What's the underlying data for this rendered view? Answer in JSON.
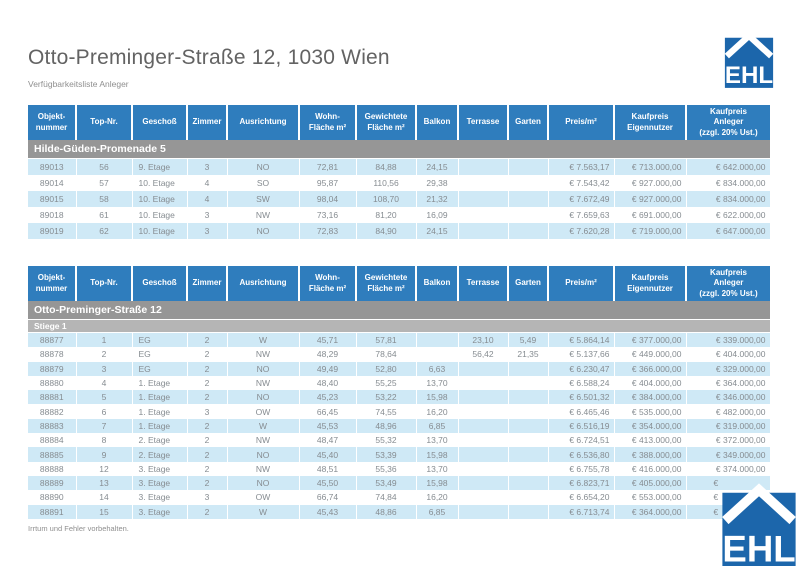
{
  "page": {
    "title": "Otto-Preminger-Straße 12, 1030 Wien",
    "subtitle": "Verfügbarkeitsliste Anleger",
    "footer": "Irrtum und Fehler vorbehalten.",
    "logo_text": "EHL"
  },
  "colors": {
    "header_blue": "#2f7dbd",
    "logo_blue": "#1c66ab",
    "row_stripe_blue": "#cfe9f6",
    "section_dark_gray": "#969696",
    "section_light_gray": "#b5b5b5",
    "body_text_gray": "#868c91"
  },
  "columns": [
    "Objekt-\nnummer",
    "Top-Nr.",
    "Geschoß",
    "Zimmer",
    "Ausrichtung",
    "Wohn-\nFläche m²",
    "Gewichtete\nFläche m²",
    "Balkon",
    "Terrasse",
    "Garten",
    "Preis/m²",
    "Kaufpreis\nEigennutzer",
    "Kaufpreis\nAnleger\n(zzgl. 20% Ust.)"
  ],
  "tables": [
    {
      "sections": [
        {
          "label": "Hilde-Güden-Promenade 5",
          "level": "dark"
        }
      ],
      "rows": [
        [
          "89013",
          "56",
          "9. Etage",
          "3",
          "NO",
          "72,81",
          "84,88",
          "24,15",
          "",
          "",
          "€ 7.563,17",
          "€ 713.000,00",
          "€ 642.000,00"
        ],
        [
          "89014",
          "57",
          "10. Etage",
          "4",
          "SO",
          "95,87",
          "110,56",
          "29,38",
          "",
          "",
          "€ 7.543,42",
          "€ 927.000,00",
          "€ 834.000,00"
        ],
        [
          "89015",
          "58",
          "10. Etage",
          "4",
          "SW",
          "98,04",
          "108,70",
          "21,32",
          "",
          "",
          "€ 7.672,49",
          "€ 927.000,00",
          "€ 834.000,00"
        ],
        [
          "89018",
          "61",
          "10. Etage",
          "3",
          "NW",
          "73,16",
          "81,20",
          "16,09",
          "",
          "",
          "€ 7.659,63",
          "€ 691.000,00",
          "€ 622.000,00"
        ],
        [
          "89019",
          "62",
          "10. Etage",
          "3",
          "NO",
          "72,83",
          "84,90",
          "24,15",
          "",
          "",
          "€ 7.620,28",
          "€ 719.000,00",
          "€ 647.000,00"
        ]
      ]
    },
    {
      "sections": [
        {
          "label": "Otto-Preminger-Straße 12",
          "level": "dark"
        },
        {
          "label": "Stiege 1",
          "level": "light"
        }
      ],
      "rows": [
        [
          "88877",
          "1",
          "EG",
          "2",
          "W",
          "45,71",
          "57,81",
          "",
          "23,10",
          "5,49",
          "€ 5.864,14",
          "€ 377.000,00",
          "€ 339.000,00"
        ],
        [
          "88878",
          "2",
          "EG",
          "2",
          "NW",
          "48,29",
          "78,64",
          "",
          "56,42",
          "21,35",
          "€ 5.137,66",
          "€ 449.000,00",
          "€ 404.000,00"
        ],
        [
          "88879",
          "3",
          "EG",
          "2",
          "NO",
          "49,49",
          "52,80",
          "6,63",
          "",
          "",
          "€ 6.230,47",
          "€ 366.000,00",
          "€ 329.000,00"
        ],
        [
          "88880",
          "4",
          "1. Etage",
          "2",
          "NW",
          "48,40",
          "55,25",
          "13,70",
          "",
          "",
          "€ 6.588,24",
          "€ 404.000,00",
          "€ 364.000,00"
        ],
        [
          "88881",
          "5",
          "1. Etage",
          "2",
          "NO",
          "45,23",
          "53,22",
          "15,98",
          "",
          "",
          "€ 6.501,32",
          "€ 384.000,00",
          "€ 346.000,00"
        ],
        [
          "88882",
          "6",
          "1. Etage",
          "3",
          "OW",
          "66,45",
          "74,55",
          "16,20",
          "",
          "",
          "€ 6.465,46",
          "€ 535.000,00",
          "€ 482.000,00"
        ],
        [
          "88883",
          "7",
          "1. Etage",
          "2",
          "W",
          "45,53",
          "48,96",
          "6,85",
          "",
          "",
          "€ 6.516,19",
          "€ 354.000,00",
          "€ 319.000,00"
        ],
        [
          "88884",
          "8",
          "2. Etage",
          "2",
          "NW",
          "48,47",
          "55,32",
          "13,70",
          "",
          "",
          "€ 6.724,51",
          "€ 413.000,00",
          "€ 372.000,00"
        ],
        [
          "88885",
          "9",
          "2. Etage",
          "2",
          "NO",
          "45,40",
          "53,39",
          "15,98",
          "",
          "",
          "€ 6.536,80",
          "€ 388.000,00",
          "€ 349.000,00"
        ],
        [
          "88888",
          "12",
          "3. Etage",
          "2",
          "NW",
          "48,51",
          "55,36",
          "13,70",
          "",
          "",
          "€ 6.755,78",
          "€ 416.000,00",
          "€ 374.000,00"
        ],
        [
          "88889",
          "13",
          "3. Etage",
          "2",
          "NO",
          "45,50",
          "53,49",
          "15,98",
          "",
          "",
          "€ 6.823,71",
          "€ 405.000,00",
          "€                    "
        ],
        [
          "88890",
          "14",
          "3. Etage",
          "3",
          "OW",
          "66,74",
          "74,84",
          "16,20",
          "",
          "",
          "€ 6.654,20",
          "€ 553.000,00",
          "€                    "
        ],
        [
          "88891",
          "15",
          "3. Etage",
          "2",
          "W",
          "45,43",
          "48,86",
          "6,85",
          "",
          "",
          "€ 6.713,74",
          "€ 364.000,00",
          "€                    "
        ]
      ]
    }
  ]
}
